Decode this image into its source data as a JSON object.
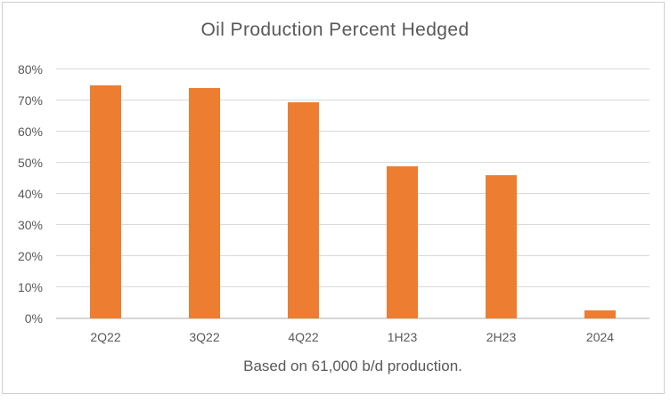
{
  "colors": {
    "bar": "#ed7d31",
    "text": "#595959",
    "gridline": "#d9d9d9",
    "frame_border": "#d0cece",
    "background": "#ffffff"
  },
  "chart_data": {
    "type": "bar",
    "title": "Oil Production Percent Hedged",
    "categories": [
      "2Q22",
      "3Q22",
      "4Q22",
      "1H23",
      "2H23",
      "2024"
    ],
    "values": [
      75,
      74,
      69.5,
      49,
      46,
      2.5
    ],
    "value_unit": "%",
    "xlabel": "",
    "ylabel": "",
    "ylim": [
      0,
      80
    ],
    "ytick_step": 10,
    "ytick_labels": [
      "0%",
      "10%",
      "20%",
      "30%",
      "40%",
      "50%",
      "60%",
      "70%",
      "80%"
    ],
    "grid": "horizontal",
    "legend": "none",
    "note": "Based on 61,000 b/d production."
  }
}
